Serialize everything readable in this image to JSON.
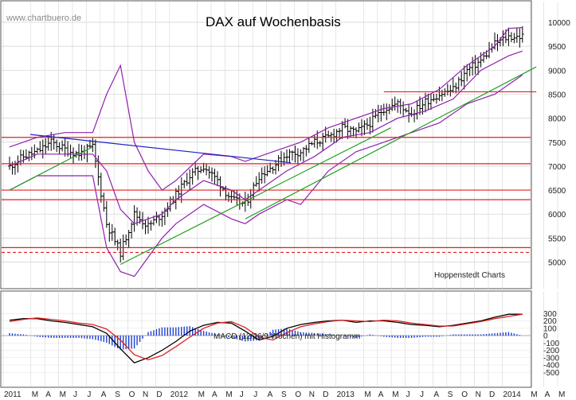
{
  "header": {
    "title": "DAX auf Wochenbasis",
    "watermark": "www.chartbuero.de",
    "source": "Hoppenstedt Charts",
    "macd_caption": "MACD (12/26/9 Wochen) mit Histogramm"
  },
  "chart_data": [
    {
      "type": "candlestick",
      "title": "DAX auf Wochenbasis",
      "ylim": [
        4600,
        10150
      ],
      "yticks": [
        10000,
        9500,
        9000,
        8500,
        8000,
        7500,
        7000,
        6500,
        6000,
        5500,
        5000
      ],
      "x_tick_labels": [
        "2011",
        "M",
        "A",
        "M",
        "J",
        "J",
        "A",
        "S",
        "O",
        "N",
        "D",
        "2012",
        "M",
        "A",
        "M",
        "J",
        "J",
        "A",
        "S",
        "O",
        "N",
        "D",
        "2013",
        "M",
        "A",
        "M",
        "J",
        "J",
        "A",
        "S",
        "O",
        "N",
        "D",
        "2014",
        "M",
        "A",
        "M"
      ],
      "x_tick_positions": [
        0,
        2,
        3,
        4,
        5,
        6,
        7,
        8,
        9,
        10,
        11,
        12,
        14,
        15,
        16,
        17,
        18,
        19,
        20,
        21,
        22,
        23,
        24,
        26,
        27,
        28,
        29,
        30,
        31,
        32,
        33,
        34,
        35,
        36,
        38,
        39,
        40
      ],
      "price_path": [
        [
          0,
          7000
        ],
        [
          1,
          7200
        ],
        [
          2,
          7300
        ],
        [
          3,
          7500
        ],
        [
          4,
          7350
        ],
        [
          5,
          7250
        ],
        [
          6,
          7400
        ],
        [
          7,
          5800
        ],
        [
          8,
          5200
        ],
        [
          9,
          6000
        ],
        [
          10,
          5750
        ],
        [
          11,
          6000
        ],
        [
          12,
          6400
        ],
        [
          13,
          6800
        ],
        [
          14,
          7000
        ],
        [
          15,
          6700
        ],
        [
          16,
          6300
        ],
        [
          17,
          6200
        ],
        [
          18,
          6800
        ],
        [
          19,
          7000
        ],
        [
          20,
          7250
        ],
        [
          21,
          7300
        ],
        [
          22,
          7500
        ],
        [
          23,
          7600
        ],
        [
          24,
          7800
        ],
        [
          25,
          7700
        ],
        [
          26,
          7900
        ],
        [
          27,
          8200
        ],
        [
          28,
          8300
        ],
        [
          29,
          8100
        ],
        [
          30,
          8350
        ],
        [
          31,
          8500
        ],
        [
          32,
          8600
        ],
        [
          33,
          9000
        ],
        [
          34,
          9200
        ],
        [
          35,
          9550
        ],
        [
          36,
          9700
        ],
        [
          37,
          9700
        ]
      ],
      "horizontal_lines": [
        {
          "value": 7600,
          "style": "solid",
          "color": "#e02020"
        },
        {
          "value": 7050,
          "style": "solid",
          "color": "#e02020"
        },
        {
          "value": 6500,
          "style": "solid",
          "color": "#e02020"
        },
        {
          "value": 6300,
          "style": "solid",
          "color": "#e02020"
        },
        {
          "value": 5300,
          "style": "solid",
          "color": "#e02020"
        },
        {
          "value": 5200,
          "style": "dashed",
          "color": "#e02020"
        },
        {
          "value": 8550,
          "style": "solid",
          "color": "#e02020",
          "from_x": 27
        }
      ],
      "trendlines": [
        {
          "color": "#2020c0",
          "points": [
            [
              1.5,
              7660
            ],
            [
              20.3,
              7070
            ]
          ]
        },
        {
          "color": "#20a020",
          "points": [
            [
              0,
              6500
            ],
            [
              6,
              7400
            ]
          ]
        },
        {
          "color": "#20a020",
          "points": [
            [
              8,
              4950
            ],
            [
              27.5,
              7800
            ]
          ]
        },
        {
          "color": "#20a020",
          "points": [
            [
              17,
              5900
            ],
            [
              38,
              9070
            ]
          ]
        }
      ],
      "bollinger": {
        "color": "#9020b0",
        "upper": [
          [
            0,
            7400
          ],
          [
            2,
            7600
          ],
          [
            4,
            7700
          ],
          [
            6,
            7700
          ],
          [
            7,
            8500
          ],
          [
            8,
            9100
          ],
          [
            9,
            7500
          ],
          [
            10,
            6900
          ],
          [
            11,
            6500
          ],
          [
            12,
            6700
          ],
          [
            14,
            7250
          ],
          [
            16,
            7200
          ],
          [
            17,
            7100
          ],
          [
            19,
            7300
          ],
          [
            21,
            7500
          ],
          [
            23,
            7800
          ],
          [
            25,
            8000
          ],
          [
            27,
            8200
          ],
          [
            29,
            8300
          ],
          [
            31,
            8600
          ],
          [
            33,
            9100
          ],
          [
            35,
            9500
          ],
          [
            36,
            9870
          ],
          [
            37,
            9890
          ]
        ],
        "middle": [
          [
            0,
            7000
          ],
          [
            2,
            7250
          ],
          [
            4,
            7250
          ],
          [
            6,
            7250
          ],
          [
            7,
            6900
          ],
          [
            8,
            6100
          ],
          [
            9,
            5800
          ],
          [
            10,
            5900
          ],
          [
            11,
            6000
          ],
          [
            12,
            6300
          ],
          [
            14,
            6700
          ],
          [
            16,
            6500
          ],
          [
            17,
            6300
          ],
          [
            18,
            6500
          ],
          [
            20,
            6900
          ],
          [
            22,
            7200
          ],
          [
            24,
            7600
          ],
          [
            26,
            7700
          ],
          [
            28,
            8000
          ],
          [
            30,
            8150
          ],
          [
            32,
            8400
          ],
          [
            34,
            9000
          ],
          [
            36,
            9300
          ],
          [
            37,
            9400
          ]
        ],
        "lower": [
          [
            0,
            6500
          ],
          [
            2,
            6800
          ],
          [
            4,
            6800
          ],
          [
            6,
            6800
          ],
          [
            7,
            5300
          ],
          [
            8,
            4800
          ],
          [
            9,
            4700
          ],
          [
            10,
            5100
          ],
          [
            11,
            5500
          ],
          [
            12,
            5800
          ],
          [
            14,
            6200
          ],
          [
            16,
            5900
          ],
          [
            17,
            5800
          ],
          [
            18,
            6000
          ],
          [
            20,
            6300
          ],
          [
            21,
            6200
          ],
          [
            23,
            6900
          ],
          [
            25,
            7300
          ],
          [
            27,
            7500
          ],
          [
            29,
            7700
          ],
          [
            31,
            7900
          ],
          [
            33,
            8300
          ],
          [
            35,
            8500
          ],
          [
            36,
            8700
          ],
          [
            37,
            8900
          ]
        ]
      }
    },
    {
      "type": "line",
      "title": "MACD (12/26/9 Wochen) mit Histogramm",
      "ylim": [
        -520,
        380
      ],
      "yticks": [
        300,
        200,
        100,
        0,
        -100,
        -200,
        -300,
        -400,
        -500
      ],
      "series": [
        {
          "color": "#000000",
          "values": [
            [
              0,
              210
            ],
            [
              1,
              230
            ],
            [
              2,
              230
            ],
            [
              3,
              200
            ],
            [
              4,
              180
            ],
            [
              5,
              150
            ],
            [
              6,
              120
            ],
            [
              7,
              30
            ],
            [
              8,
              -180
            ],
            [
              9,
              -370
            ],
            [
              10,
              -300
            ],
            [
              11,
              -200
            ],
            [
              12,
              -80
            ],
            [
              13,
              60
            ],
            [
              14,
              140
            ],
            [
              15,
              180
            ],
            [
              16,
              170
            ],
            [
              17,
              60
            ],
            [
              18,
              -60
            ],
            [
              19,
              -10
            ],
            [
              20,
              100
            ],
            [
              21,
              150
            ],
            [
              22,
              180
            ],
            [
              23,
              200
            ],
            [
              24,
              210
            ],
            [
              25,
              180
            ],
            [
              26,
              200
            ],
            [
              27,
              200
            ],
            [
              28,
              180
            ],
            [
              29,
              150
            ],
            [
              30,
              140
            ],
            [
              31,
              120
            ],
            [
              32,
              140
            ],
            [
              33,
              170
            ],
            [
              34,
              200
            ],
            [
              35,
              250
            ],
            [
              36,
              290
            ],
            [
              37,
              290
            ]
          ]
        },
        {
          "color": "#e02020",
          "values": [
            [
              0,
              190
            ],
            [
              1,
              220
            ],
            [
              2,
              240
            ],
            [
              3,
              220
            ],
            [
              4,
              200
            ],
            [
              5,
              170
            ],
            [
              6,
              150
            ],
            [
              7,
              90
            ],
            [
              8,
              -60
            ],
            [
              9,
              -260
            ],
            [
              10,
              -330
            ],
            [
              11,
              -270
            ],
            [
              12,
              -150
            ],
            [
              13,
              -20
            ],
            [
              14,
              100
            ],
            [
              15,
              170
            ],
            [
              16,
              190
            ],
            [
              17,
              110
            ],
            [
              18,
              -20
            ],
            [
              19,
              -60
            ],
            [
              20,
              40
            ],
            [
              21,
              120
            ],
            [
              22,
              160
            ],
            [
              23,
              190
            ],
            [
              24,
              210
            ],
            [
              25,
              200
            ],
            [
              26,
              190
            ],
            [
              27,
              210
            ],
            [
              28,
              200
            ],
            [
              29,
              170
            ],
            [
              30,
              150
            ],
            [
              31,
              130
            ],
            [
              32,
              130
            ],
            [
              33,
              160
            ],
            [
              34,
              190
            ],
            [
              35,
              230
            ],
            [
              36,
              260
            ],
            [
              37,
              290
            ]
          ]
        }
      ],
      "histogram": {
        "color": "#2040d0"
      }
    }
  ]
}
